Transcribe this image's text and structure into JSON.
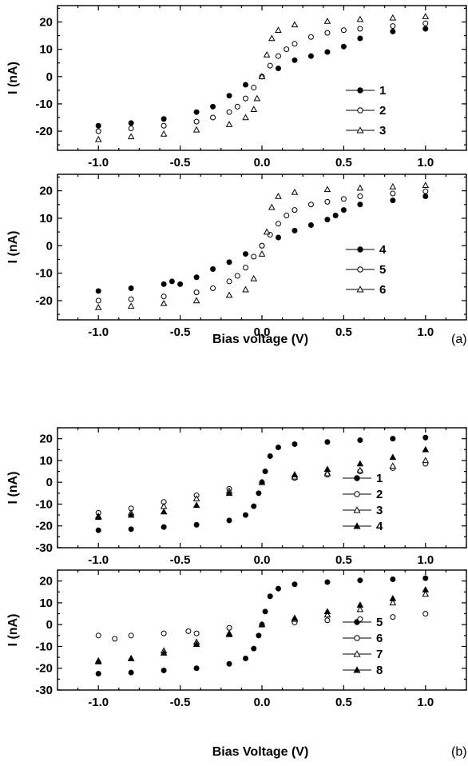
{
  "chart_data": [
    {
      "type": "scatter",
      "panel_label": "",
      "xlabel": "",
      "ylabel": "I (nA)",
      "xlim": [
        -1.25,
        1.25
      ],
      "ylim": [
        -27,
        26
      ],
      "xticks": [
        "-1.0",
        "-0.5",
        "0.0",
        "0.5",
        "1.0"
      ],
      "yticks": [
        "20",
        "10",
        "0",
        "-10",
        "-20"
      ],
      "ytick_values": [
        20,
        10,
        0,
        -10,
        -20
      ],
      "legend_position": "right",
      "series": [
        {
          "name": "1",
          "marker": "filled-circle",
          "x": [
            -1.0,
            -0.8,
            -0.6,
            -0.4,
            -0.3,
            -0.2,
            -0.1,
            0.0,
            0.1,
            0.2,
            0.3,
            0.4,
            0.5,
            0.6,
            0.8,
            1.0
          ],
          "y": [
            -18,
            -17,
            -15.5,
            -13,
            -11,
            -7,
            -3,
            0,
            3,
            6,
            7.5,
            9,
            11,
            14,
            16.5,
            17.5
          ]
        },
        {
          "name": "2",
          "marker": "open-circle",
          "x": [
            -1.0,
            -0.8,
            -0.6,
            -0.4,
            -0.3,
            -0.2,
            -0.15,
            -0.1,
            -0.05,
            0.0,
            0.05,
            0.1,
            0.15,
            0.2,
            0.3,
            0.4,
            0.5,
            0.6,
            0.8,
            1.0
          ],
          "y": [
            -20,
            -19,
            -18,
            -16.5,
            -15,
            -13,
            -11,
            -8,
            -4,
            0,
            4,
            7.5,
            10,
            12,
            14.5,
            16,
            17,
            17.5,
            18.5,
            19.5
          ]
        },
        {
          "name": "3",
          "marker": "open-triangle",
          "x": [
            -1.0,
            -0.8,
            -0.6,
            -0.4,
            -0.2,
            -0.1,
            -0.05,
            -0.03,
            0.0,
            0.03,
            0.06,
            0.1,
            0.2,
            0.4,
            0.6,
            0.8,
            1.0
          ],
          "y": [
            -23,
            -22,
            -21,
            -19.5,
            -17.5,
            -15,
            -12,
            -8,
            0,
            8,
            14,
            17,
            19,
            20.3,
            21,
            21.5,
            22
          ]
        }
      ]
    },
    {
      "type": "scatter",
      "panel_label": "(a)",
      "xlabel": "Bias voltage (V)",
      "ylabel": "I (nA)",
      "xlim": [
        -1.25,
        1.25
      ],
      "ylim": [
        -27,
        26
      ],
      "xticks": [
        "-1.0",
        "-0.5",
        "0.0",
        "0.5",
        "1.0"
      ],
      "yticks": [
        "20",
        "10",
        "0",
        "-10",
        "-20"
      ],
      "ytick_values": [
        20,
        10,
        0,
        -10,
        -20
      ],
      "legend_position": "right",
      "series": [
        {
          "name": "4",
          "marker": "filled-circle",
          "x": [
            -1.0,
            -0.8,
            -0.6,
            -0.55,
            -0.5,
            -0.4,
            -0.3,
            -0.2,
            -0.1,
            0.0,
            0.1,
            0.2,
            0.3,
            0.4,
            0.45,
            0.5,
            0.6,
            0.8,
            1.0
          ],
          "y": [
            -16.5,
            -15.5,
            -14,
            -13,
            -14,
            -11.5,
            -8.5,
            -6,
            -3,
            0,
            3,
            5.5,
            7.5,
            9.5,
            11,
            13,
            15,
            16.5,
            18
          ]
        },
        {
          "name": "5",
          "marker": "open-circle",
          "x": [
            -1.0,
            -0.8,
            -0.6,
            -0.4,
            -0.3,
            -0.2,
            -0.15,
            -0.1,
            -0.05,
            0.0,
            0.05,
            0.1,
            0.15,
            0.2,
            0.3,
            0.4,
            0.5,
            0.6,
            0.8,
            1.0
          ],
          "y": [
            -20,
            -19.5,
            -18.5,
            -17,
            -15.5,
            -13,
            -11,
            -8,
            -4,
            0,
            4,
            8,
            11,
            13,
            15,
            16,
            17,
            18,
            19,
            19.8
          ]
        },
        {
          "name": "6",
          "marker": "open-triangle",
          "x": [
            -1.0,
            -0.8,
            -0.6,
            -0.4,
            -0.2,
            -0.1,
            -0.05,
            0.0,
            0.03,
            0.06,
            0.1,
            0.2,
            0.4,
            0.6,
            0.8,
            1.0
          ],
          "y": [
            -22.5,
            -22,
            -21,
            -20,
            -18,
            -16,
            -12,
            -3,
            5,
            14,
            18,
            19.5,
            20.5,
            21,
            21.5,
            22
          ]
        }
      ]
    },
    {
      "type": "scatter",
      "panel_label": "",
      "xlabel": "",
      "ylabel": "I (nA)",
      "xlim": [
        -1.25,
        1.25
      ],
      "ylim": [
        -30,
        25
      ],
      "xticks": [
        "-1.0",
        "-0.5",
        "0.0",
        "0.5",
        "1.0"
      ],
      "yticks": [
        "20",
        "10",
        "0",
        "-10",
        "-20",
        "-30"
      ],
      "ytick_values": [
        20,
        10,
        0,
        -10,
        -20,
        -30
      ],
      "legend_position": "right",
      "series": [
        {
          "name": "1",
          "marker": "filled-circle",
          "x": [
            -1.0,
            -0.8,
            -0.6,
            -0.4,
            -0.2,
            -0.1,
            -0.05,
            -0.02,
            0.0,
            0.02,
            0.05,
            0.1,
            0.2,
            0.4,
            0.6,
            0.8,
            1.0
          ],
          "y": [
            -22,
            -21.5,
            -20.5,
            -19.5,
            -17.5,
            -15,
            -11,
            -5,
            0,
            5,
            12,
            16,
            17.5,
            18.5,
            19.3,
            20,
            20.5
          ]
        },
        {
          "name": "2",
          "marker": "open-circle",
          "x": [
            -1.0,
            -0.8,
            -0.6,
            -0.4,
            -0.2,
            0.0,
            0.2,
            0.4,
            0.6,
            0.8,
            1.0
          ],
          "y": [
            -14,
            -12,
            -9,
            -6,
            -3,
            0,
            2,
            3.5,
            5,
            6.5,
            8.5
          ]
        },
        {
          "name": "3",
          "marker": "open-triangle",
          "x": [
            -1.0,
            -0.8,
            -0.6,
            -0.4,
            -0.2,
            0.0,
            0.2,
            0.4,
            0.6,
            0.8,
            1.0
          ],
          "y": [
            -15.5,
            -14,
            -11,
            -7.5,
            -4,
            0,
            2.5,
            4,
            5.5,
            7.5,
            10
          ]
        },
        {
          "name": "4",
          "marker": "filled-triangle",
          "x": [
            -1.0,
            -0.8,
            -0.6,
            -0.4,
            -0.2,
            0.0,
            0.2,
            0.4,
            0.6,
            0.8,
            1.0
          ],
          "y": [
            -16,
            -15,
            -13.5,
            -10.5,
            -5,
            0,
            3.5,
            6,
            8.5,
            11.5,
            15
          ]
        }
      ]
    },
    {
      "type": "scatter",
      "panel_label": "(b)",
      "xlabel": "Bias Voltage (V)",
      "ylabel": "I (nA)",
      "xlim": [
        -1.25,
        1.25
      ],
      "ylim": [
        -30,
        25
      ],
      "xticks": [
        "-1.0",
        "-0.5",
        "0.0",
        "0.5",
        "1.0"
      ],
      "yticks": [
        "20",
        "10",
        "0",
        "-10",
        "-20",
        "-30"
      ],
      "ytick_values": [
        20,
        10,
        0,
        -10,
        -20,
        -30
      ],
      "legend_position": "right",
      "series": [
        {
          "name": "5",
          "marker": "filled-circle",
          "x": [
            -1.0,
            -0.8,
            -0.6,
            -0.4,
            -0.2,
            -0.1,
            -0.05,
            -0.02,
            0.0,
            0.02,
            0.05,
            0.1,
            0.2,
            0.4,
            0.6,
            0.8,
            1.0
          ],
          "y": [
            -22.5,
            -22,
            -21,
            -20,
            -18,
            -15.5,
            -11,
            -5,
            0,
            6,
            13,
            16.5,
            18.5,
            19.5,
            20.3,
            20.8,
            21.3
          ]
        },
        {
          "name": "6",
          "marker": "open-circle",
          "x": [
            -1.0,
            -0.9,
            -0.8,
            -0.6,
            -0.45,
            -0.4,
            -0.2,
            0.0,
            0.2,
            0.4,
            0.6,
            0.8,
            1.0
          ],
          "y": [
            -5,
            -6.5,
            -5,
            -4,
            -3,
            -4,
            -1.5,
            0,
            1,
            2,
            2.5,
            3.5,
            5
          ]
        },
        {
          "name": "7",
          "marker": "open-triangle",
          "x": [
            -1.0,
            -0.8,
            -0.6,
            -0.4,
            -0.2,
            0.0,
            0.2,
            0.4,
            0.6,
            0.8,
            1.0
          ],
          "y": [
            -16.5,
            -15.5,
            -12,
            -8,
            -4,
            0,
            2.5,
            4.5,
            7,
            10,
            14
          ]
        },
        {
          "name": "8",
          "marker": "filled-triangle",
          "x": [
            -1.0,
            -0.8,
            -0.6,
            -0.4,
            -0.2,
            0.0,
            0.2,
            0.4,
            0.6,
            0.8,
            1.0
          ],
          "y": [
            -17,
            -15.5,
            -13,
            -9,
            -4.5,
            0,
            3,
            6,
            9,
            12,
            16
          ]
        }
      ]
    }
  ]
}
